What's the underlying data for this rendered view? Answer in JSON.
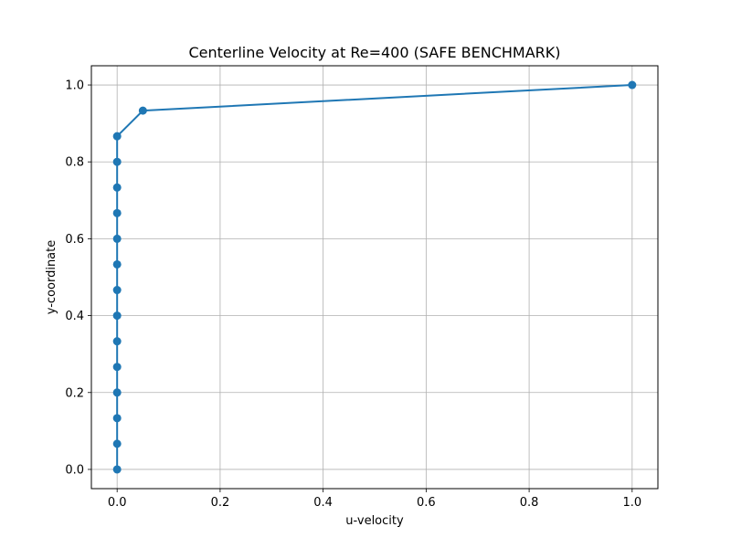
{
  "chart_data": {
    "type": "line",
    "title": "Centerline Velocity at Re=400 (SAFE BENCHMARK)",
    "xlabel": "u-velocity",
    "ylabel": "y-coordinate",
    "xlim": [
      -0.05,
      1.05
    ],
    "ylim": [
      -0.05,
      1.05
    ],
    "xticks": [
      0.0,
      0.2,
      0.4,
      0.6,
      0.8,
      1.0
    ],
    "yticks": [
      0.0,
      0.2,
      0.4,
      0.6,
      0.8,
      1.0
    ],
    "xtick_labels": [
      "0.0",
      "0.2",
      "0.4",
      "0.6",
      "0.8",
      "1.0"
    ],
    "ytick_labels": [
      "0.0",
      "0.2",
      "0.4",
      "0.6",
      "0.8",
      "1.0"
    ],
    "grid": true,
    "color": "#1f77b4",
    "marker": "circle",
    "series": [
      {
        "x": [
          0.0,
          0.0,
          0.0,
          0.0,
          0.0,
          0.0,
          0.0,
          0.0,
          0.0,
          0.0,
          0.0,
          0.0,
          0.0,
          0.0,
          0.05,
          1.0
        ],
        "y": [
          0.0,
          0.0667,
          0.1333,
          0.2,
          0.2667,
          0.3333,
          0.4,
          0.4667,
          0.5333,
          0.6,
          0.6667,
          0.7333,
          0.8,
          0.8667,
          0.9333,
          1.0
        ]
      }
    ]
  }
}
